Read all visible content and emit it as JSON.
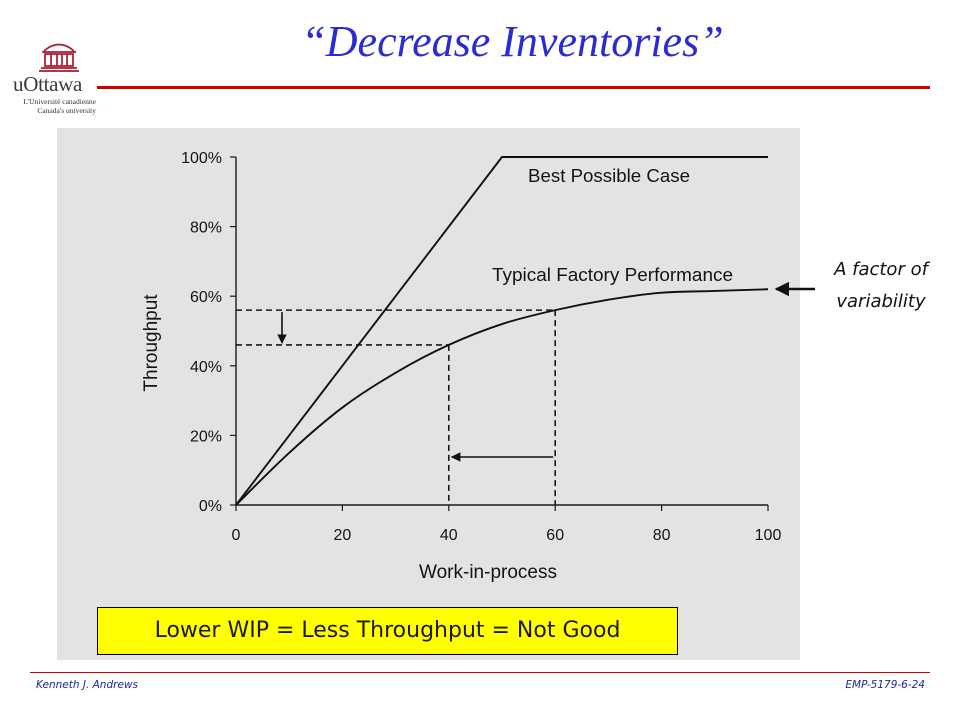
{
  "slide": {
    "title": "“Decrease Inventories”",
    "title_color": "#2b2bd4",
    "accent_color": "#cc0000"
  },
  "logo": {
    "icon": "university-building-icon",
    "wordmark": "uOttawa",
    "tagline_fr": "L'Université canadienne",
    "tagline_en": "Canada's university",
    "color": "#a6192e"
  },
  "chart_data": {
    "type": "line",
    "xlabel": "Work-in-process",
    "ylabel": "Throughput",
    "xlim": [
      0,
      100
    ],
    "ylim": [
      0,
      100
    ],
    "grid": false,
    "background": "#e3e3e3",
    "x_ticks": [
      {
        "value": 0,
        "label": "0"
      },
      {
        "value": 20,
        "label": "20"
      },
      {
        "value": 40,
        "label": "40"
      },
      {
        "value": 60,
        "label": "60"
      },
      {
        "value": 80,
        "label": "80"
      },
      {
        "value": 100,
        "label": "100"
      }
    ],
    "y_ticks": [
      {
        "value": 0,
        "label": "0%"
      },
      {
        "value": 20,
        "label": "20%"
      },
      {
        "value": 40,
        "label": "40%"
      },
      {
        "value": 60,
        "label": "60%"
      },
      {
        "value": 80,
        "label": "80%"
      },
      {
        "value": 100,
        "label": "100%"
      }
    ],
    "series": [
      {
        "name": "Best Possible Case",
        "smooth": false,
        "x": [
          0,
          50,
          100
        ],
        "y": [
          0,
          100,
          100
        ]
      },
      {
        "name": "Typical Factory Performance",
        "smooth": true,
        "x": [
          0,
          10,
          20,
          30,
          40,
          50,
          60,
          70,
          80,
          90,
          100
        ],
        "y": [
          0,
          15,
          28,
          38,
          46,
          52,
          56,
          59,
          61,
          61.5,
          62
        ]
      }
    ],
    "reference_points": [
      {
        "x": 40,
        "y": 46
      },
      {
        "x": 60,
        "y": 56
      }
    ]
  },
  "callout": {
    "line1": "A factor of",
    "line2": "variability",
    "arrow_icon": "arrow-left-icon"
  },
  "highlight_box": {
    "text": "Lower WIP = Less Throughput = Not Good",
    "background": "#ffff00"
  },
  "footer": {
    "author": "Kenneth J. Andrews",
    "slide_code": "EMP-5179-6-24"
  }
}
